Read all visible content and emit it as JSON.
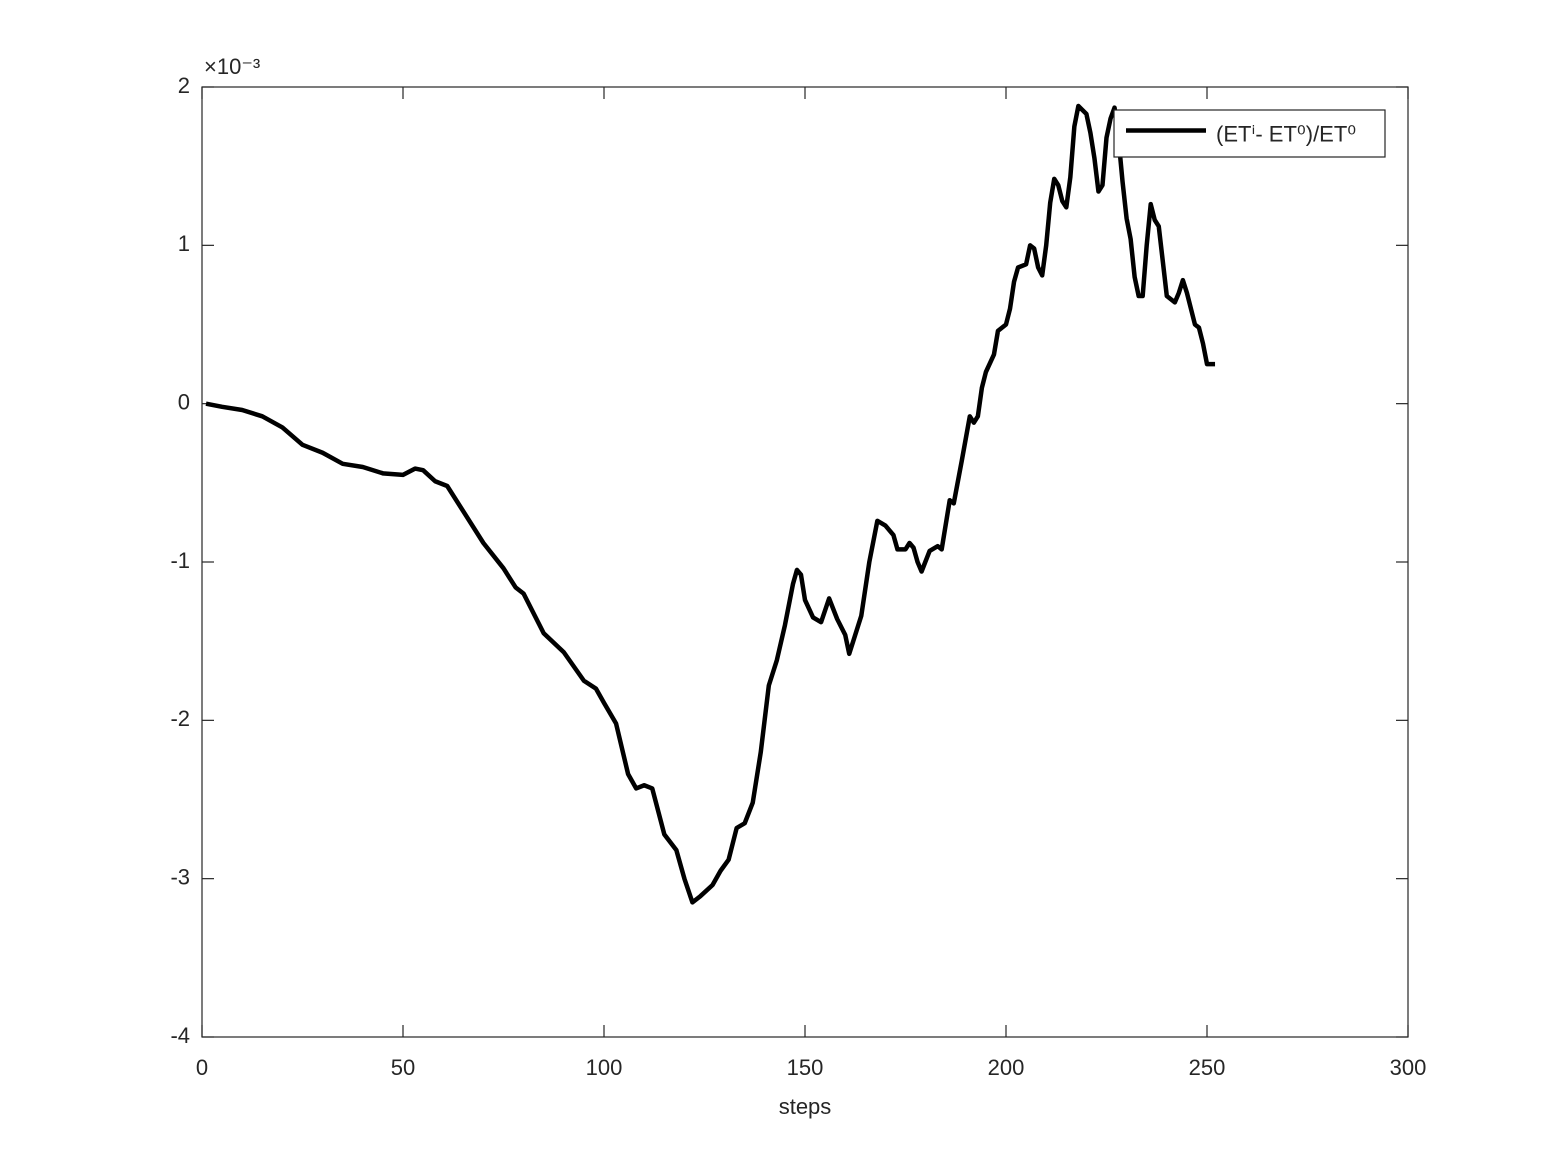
{
  "chart_data": {
    "type": "line",
    "xlabel": "steps",
    "y_exponent_label": "×10⁻³",
    "x": [
      1,
      5,
      10,
      15,
      20,
      25,
      30,
      35,
      40,
      45,
      50,
      53,
      55,
      58,
      61,
      65,
      70,
      75,
      78,
      80,
      85,
      90,
      95,
      98,
      100,
      103,
      106,
      108,
      110,
      112,
      115,
      118,
      120,
      122,
      124,
      127,
      129,
      131,
      133,
      135,
      137,
      139,
      141,
      143,
      145,
      147,
      148,
      149,
      150,
      152,
      154,
      156,
      158,
      160,
      161,
      162,
      164,
      166,
      168,
      170,
      172,
      173,
      175,
      176,
      177,
      178,
      179,
      181,
      183,
      184,
      186,
      187,
      189,
      191,
      192,
      193,
      194,
      195,
      197,
      198,
      200,
      201,
      202,
      203,
      205,
      206,
      207,
      208,
      209,
      210,
      211,
      212,
      213,
      214,
      215,
      216,
      217,
      218,
      220,
      221,
      222,
      223,
      224,
      225,
      226,
      227,
      228,
      229,
      230,
      231,
      232,
      233,
      234,
      235,
      236,
      237,
      238,
      239,
      240,
      242,
      243,
      244,
      245,
      247,
      248,
      249,
      250,
      252
    ],
    "series": [
      {
        "name": "(ETⁱ- ET⁰)/ET⁰",
        "color": "#000000",
        "values": [
          0,
          -0.02,
          -0.04,
          -0.08,
          -0.15,
          -0.26,
          -0.31,
          -0.38,
          -0.4,
          -0.44,
          -0.45,
          -0.41,
          -0.42,
          -0.49,
          -0.52,
          -0.68,
          -0.88,
          -1.04,
          -1.16,
          -1.2,
          -1.45,
          -1.57,
          -1.75,
          -1.8,
          -1.89,
          -2.02,
          -2.34,
          -2.43,
          -2.41,
          -2.43,
          -2.72,
          -2.82,
          -3.0,
          -3.15,
          -3.11,
          -3.04,
          -2.95,
          -2.88,
          -2.68,
          -2.65,
          -2.52,
          -2.2,
          -1.78,
          -1.62,
          -1.4,
          -1.14,
          -1.05,
          -1.08,
          -1.24,
          -1.35,
          -1.38,
          -1.23,
          -1.36,
          -1.46,
          -1.58,
          -1.5,
          -1.34,
          -1.0,
          -0.74,
          -0.77,
          -0.83,
          -0.92,
          -0.92,
          -0.88,
          -0.91,
          -1.0,
          -1.06,
          -0.93,
          -0.9,
          -0.92,
          -0.61,
          -0.63,
          -0.36,
          -0.08,
          -0.12,
          -0.08,
          0.1,
          0.2,
          0.31,
          0.46,
          0.5,
          0.6,
          0.77,
          0.86,
          0.88,
          1.0,
          0.98,
          0.86,
          0.81,
          1.0,
          1.27,
          1.42,
          1.38,
          1.28,
          1.24,
          1.43,
          1.75,
          1.88,
          1.83,
          1.71,
          1.55,
          1.34,
          1.38,
          1.68,
          1.8,
          1.87,
          1.67,
          1.4,
          1.17,
          1.04,
          0.8,
          0.68,
          0.68,
          1.0,
          1.26,
          1.16,
          1.12,
          0.9,
          0.68,
          0.64,
          0.7,
          0.78,
          0.7,
          0.5,
          0.48,
          0.38,
          0.25,
          0.25
        ]
      }
    ],
    "xlim": [
      0,
      300
    ],
    "xticks": [
      0,
      50,
      100,
      150,
      200,
      250,
      300
    ],
    "ylim": [
      -4,
      2
    ],
    "yticks": [
      -4,
      -3,
      -2,
      -1,
      0,
      1,
      2
    ],
    "grid": false,
    "legend_location": "northeast"
  }
}
